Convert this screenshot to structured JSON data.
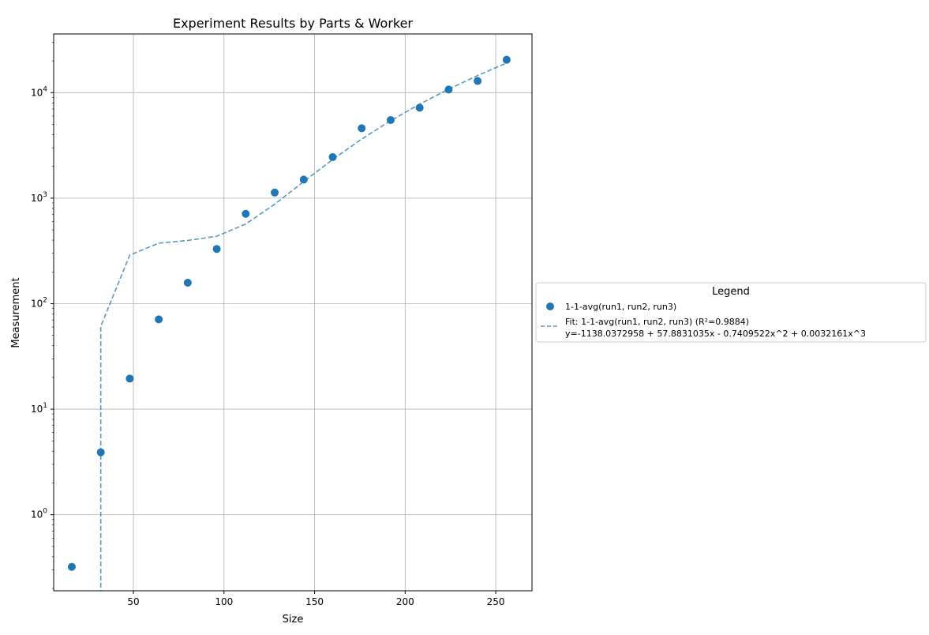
{
  "chart_data": {
    "type": "scatter",
    "title": "Experiment Results by Parts & Worker",
    "xlabel": "Size",
    "ylabel": "Measurement",
    "xlim": [
      6,
      270
    ],
    "ylim": [
      0.19,
      36000
    ],
    "yscale": "log",
    "grid": true,
    "x_ticks": [
      50,
      100,
      150,
      200,
      250
    ],
    "x_tick_labels": [
      "50",
      "100",
      "150",
      "200",
      "250"
    ],
    "y_ticks": [
      1,
      10,
      100,
      1000,
      10000
    ],
    "y_tick_labels": [
      {
        "base": "10",
        "exp": "0"
      },
      {
        "base": "10",
        "exp": "1"
      },
      {
        "base": "10",
        "exp": "2"
      },
      {
        "base": "10",
        "exp": "3"
      },
      {
        "base": "10",
        "exp": "4"
      }
    ],
    "series": [
      {
        "name": "1-1-avg(run1, run2, run3)",
        "kind": "scatter",
        "color": "#1f77b4",
        "x": [
          16,
          32,
          48,
          64,
          80,
          96,
          112,
          128,
          144,
          160,
          176,
          192,
          208,
          224,
          240,
          256
        ],
        "y": [
          0.32,
          3.9,
          19.5,
          71,
          158,
          330,
          710,
          1130,
          1500,
          2450,
          4600,
          5500,
          7200,
          10700,
          12900,
          20500
        ]
      },
      {
        "name": "Fit: 1-1-avg(run1, run2, run3) (R²=0.9884)",
        "equation": "y=-1138.0372958 + 57.8831035x - 0.7409522x^2 + 0.0032161x^3",
        "kind": "line",
        "style": "dashed",
        "color": "#1f77b4",
        "coefficients": [
          -1138.0372958,
          57.8831035,
          -0.7409522,
          0.0032161
        ]
      }
    ],
    "legend": {
      "title": "Legend",
      "placement": "center-right outside"
    }
  }
}
